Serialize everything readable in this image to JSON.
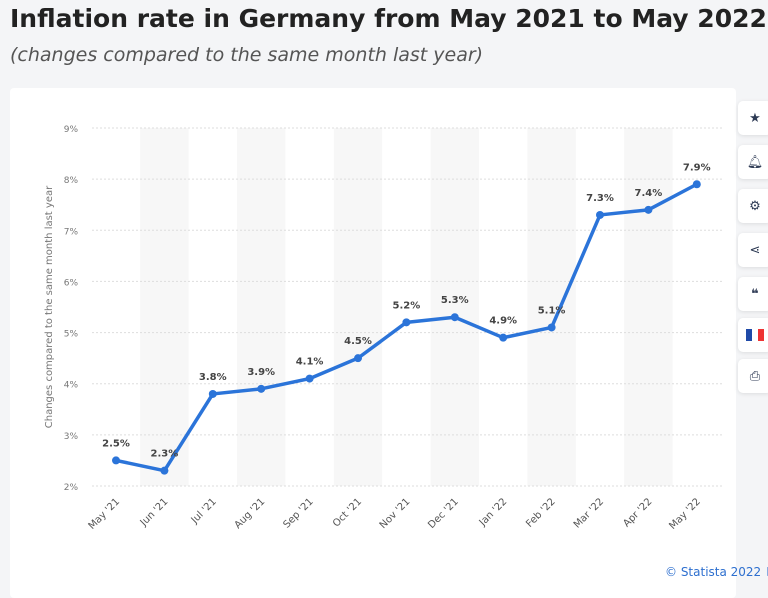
{
  "header": {
    "title": "Inflation rate in Germany from May 2021 to May 2022",
    "subtitle": "(changes compared to the same month last year)"
  },
  "sidebar": [
    {
      "icon": "star-icon"
    },
    {
      "icon": "bell-icon"
    },
    {
      "icon": "gear-icon"
    },
    {
      "icon": "share-icon"
    },
    {
      "icon": "quote-icon"
    },
    {
      "icon": "french-flag-icon"
    },
    {
      "icon": "print-icon"
    }
  ],
  "credit": "© Statista 2022",
  "colors": {
    "line": "#2b74d9",
    "band": "#f7f7f7"
  },
  "chart_data": {
    "type": "line",
    "title": "Inflation rate in Germany from May 2021 to May 2022",
    "ylabel": "Changes compared to the same month last year",
    "xlabel": "",
    "categories": [
      "May '21",
      "Jun '21",
      "Jul '21",
      "Aug '21",
      "Sep '21",
      "Oct '21",
      "Nov '21",
      "Dec '21",
      "Jan '22",
      "Feb '22",
      "Mar '22",
      "Apr '22",
      "May '22"
    ],
    "values": [
      2.5,
      2.3,
      3.8,
      3.9,
      4.1,
      4.5,
      5.2,
      5.3,
      4.9,
      5.1,
      7.3,
      7.4,
      7.9
    ],
    "labels": [
      "2.5%",
      "2.3%",
      "3.8%",
      "3.9%",
      "4.1%",
      "4.5%",
      "5.2%",
      "5.3%",
      "4.9%",
      "5.1%",
      "7.3%",
      "7.4%",
      "7.9%"
    ],
    "yticks": [
      "2%",
      "3%",
      "4%",
      "5%",
      "6%",
      "7%",
      "8%",
      "9%"
    ],
    "ylim": [
      2,
      9
    ],
    "grid": true
  }
}
